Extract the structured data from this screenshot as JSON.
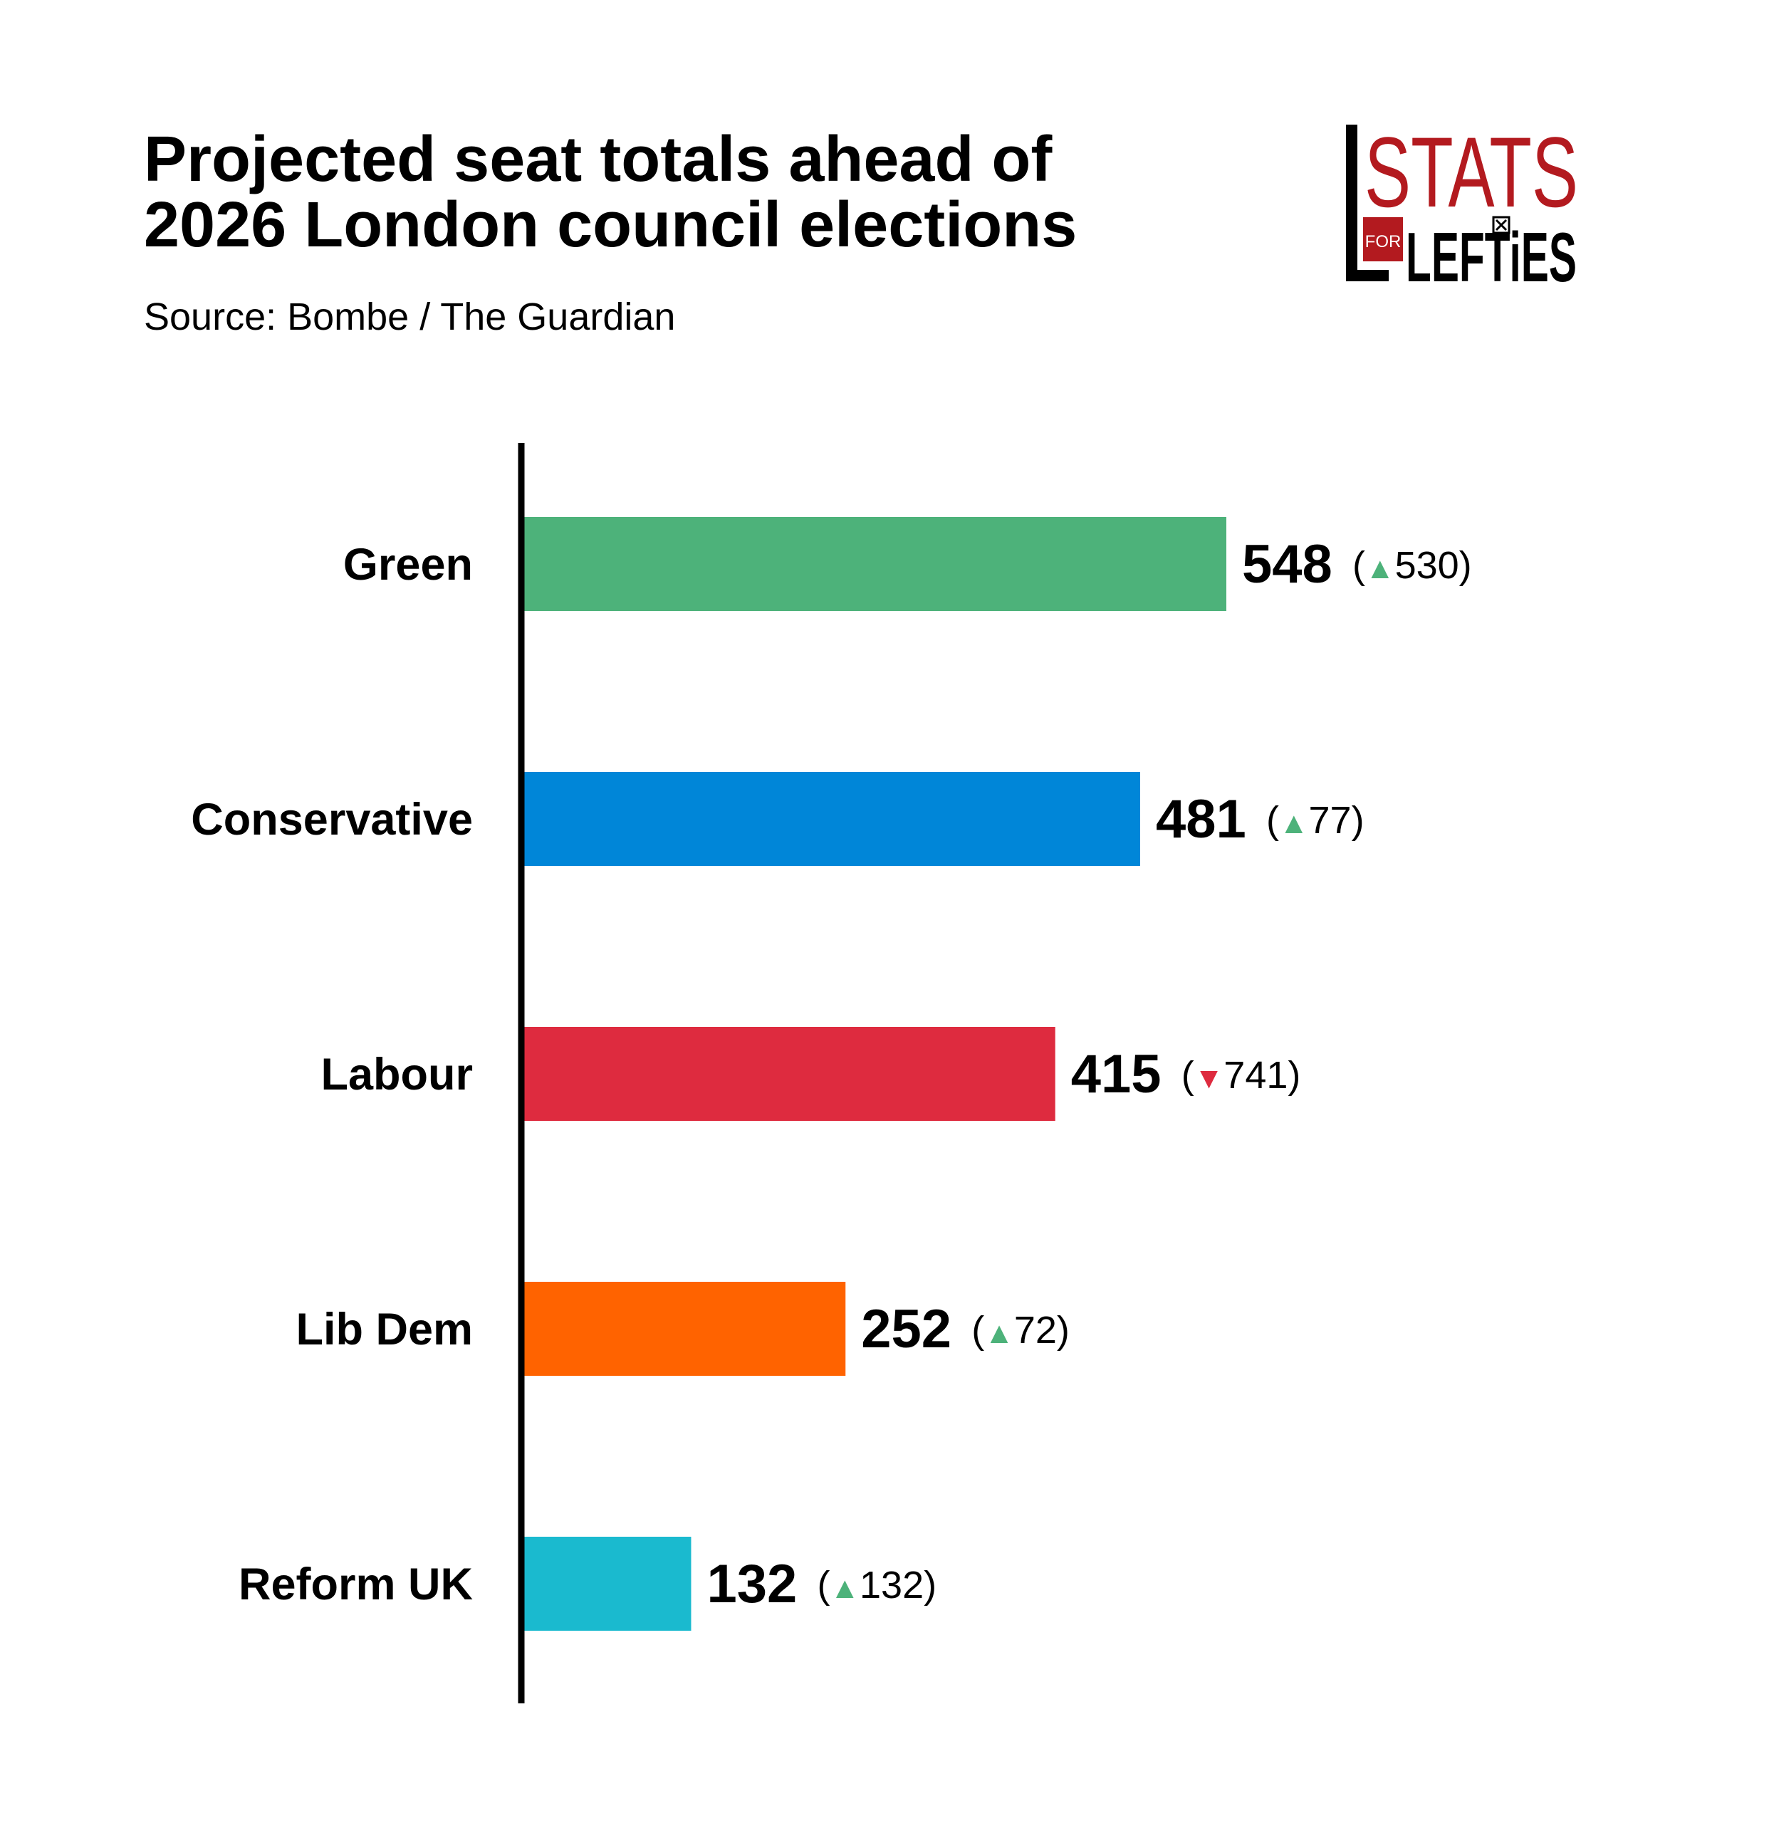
{
  "title_line1": "Projected seat totals ahead of",
  "title_line2": "2026 London council elections",
  "subtitle": "Source: Bombe / The Guardian",
  "logo": {
    "word_top": "STATS",
    "word_small": "FOR",
    "word_bottom": "LEFTiES"
  },
  "colors": {
    "up": "#4db27a",
    "down": "#de2b3f",
    "text": "#000000"
  },
  "chart_data": {
    "type": "bar",
    "orientation": "horizontal",
    "title": "Projected seat totals ahead of 2026 London council elections",
    "categories": [
      "Green",
      "Conservative",
      "Labour",
      "Lib Dem",
      "Reform UK"
    ],
    "values": [
      548,
      481,
      415,
      252,
      132
    ],
    "changes": [
      {
        "direction": "up",
        "value": 530
      },
      {
        "direction": "up",
        "value": 77
      },
      {
        "direction": "down",
        "value": 741
      },
      {
        "direction": "up",
        "value": 72
      },
      {
        "direction": "up",
        "value": 132
      }
    ],
    "bar_colors": [
      "#4db27a",
      "#0086d8",
      "#de2b3f",
      "#ff6300",
      "#1abacf"
    ],
    "xlim": [
      0,
      548
    ],
    "xlabel": "",
    "ylabel": "",
    "grid": false
  }
}
